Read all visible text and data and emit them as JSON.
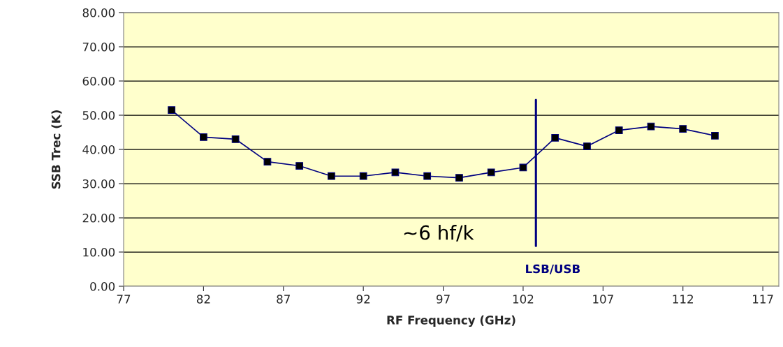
{
  "chart_data": {
    "type": "line",
    "xlabel": "RF Frequency (GHz)",
    "ylabel": "SSB Trec (K)",
    "x": [
      80,
      82,
      84,
      86,
      88,
      90,
      92,
      94,
      96,
      98,
      100,
      102,
      104,
      106,
      108,
      110,
      112,
      114
    ],
    "series": [
      {
        "color": "#000080",
        "values": [
          51.5,
          43.6,
          43.0,
          36.4,
          35.2,
          32.2,
          32.2,
          33.3,
          32.2,
          31.7,
          33.3,
          34.7,
          43.4,
          40.9,
          45.6,
          46.7,
          46.0,
          44.0
        ],
        "marker": "square"
      },
      {
        "type": "line",
        "color": "#000080",
        "x": [
          102.8,
          102.8
        ],
        "values": [
          54.5,
          11.8
        ],
        "marker": "none"
      }
    ],
    "annotations": [
      "~6 hf/k",
      "LSB/USB"
    ],
    "xlim": [
      77,
      118
    ],
    "xticks": [
      77,
      82,
      87,
      92,
      97,
      102,
      107,
      112,
      117
    ],
    "ylim": [
      0,
      80
    ],
    "yticks": [
      {
        "value": 0,
        "label": "0.00"
      },
      {
        "value": 10,
        "label": "10.00"
      },
      {
        "value": 20,
        "label": "20.00"
      },
      {
        "value": 30,
        "label": "30.00"
      },
      {
        "value": 40,
        "label": "40.00"
      },
      {
        "value": 50,
        "label": "50.00"
      },
      {
        "value": 60,
        "label": "60.00"
      },
      {
        "value": 70,
        "label": "70.00"
      },
      {
        "value": 80,
        "label": "80.00"
      }
    ],
    "grid": "y",
    "legend": false
  }
}
